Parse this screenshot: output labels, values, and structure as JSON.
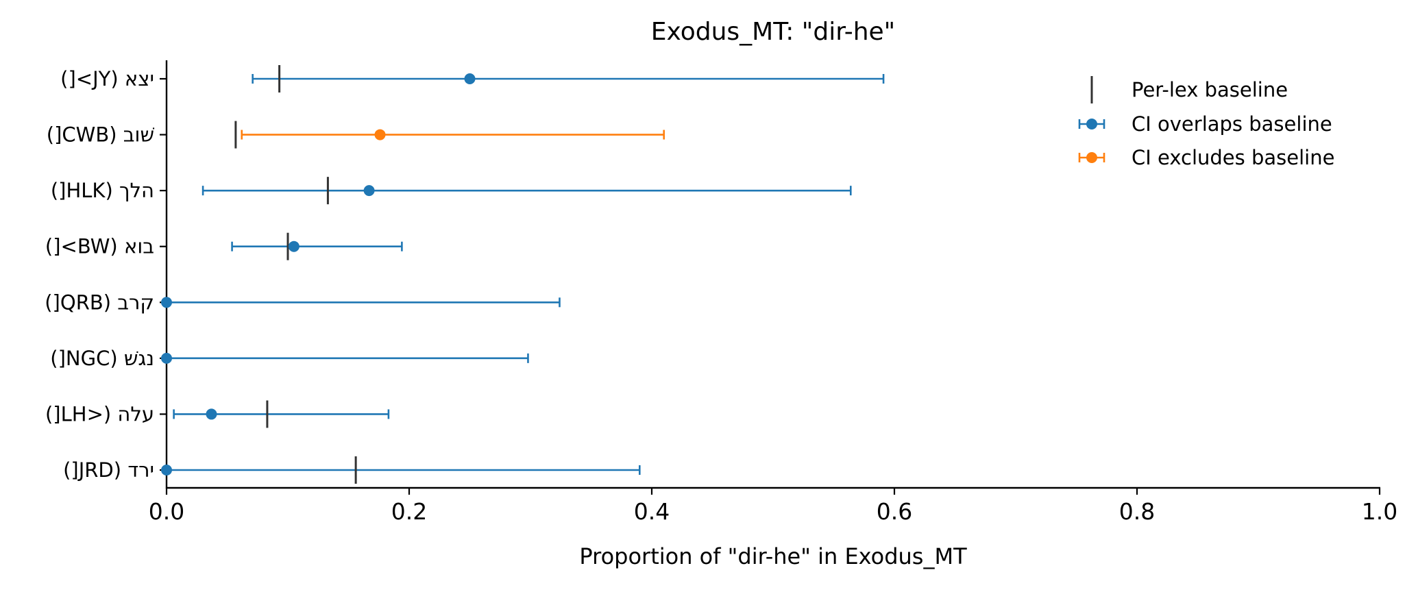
{
  "chart_data": {
    "type": "errorbar",
    "title": "Exodus_MT: \"dir-he\"",
    "xlabel": "Proportion of \"dir-he\" in Exodus_MT",
    "ylabel": "",
    "xlim": [
      0.0,
      1.0
    ],
    "xticks": [
      "0.0",
      "0.2",
      "0.4",
      "0.6",
      "0.8",
      "1.0"
    ],
    "categories": [
      "יצא (JY>[)",
      "שׁוב (CWB[)",
      "הלך (HLK[)",
      "בוא (BW>[)",
      "קרב (QRB[)",
      "נגשׁ (NGC[)",
      "עלה (<LH[)",
      "ירד (JRD[)"
    ],
    "points": [
      {
        "label": "יצא (JY>[)",
        "value": 0.25,
        "ci_low": 0.071,
        "ci_high": 0.591,
        "baseline": 0.093,
        "group": "overlaps"
      },
      {
        "label": "שׁוב (CWB[)",
        "value": 0.176,
        "ci_low": 0.062,
        "ci_high": 0.41,
        "baseline": 0.057,
        "group": "excludes"
      },
      {
        "label": "הלך (HLK[)",
        "value": 0.167,
        "ci_low": 0.03,
        "ci_high": 0.564,
        "baseline": 0.133,
        "group": "overlaps"
      },
      {
        "label": "בוא (BW>[)",
        "value": 0.105,
        "ci_low": 0.054,
        "ci_high": 0.194,
        "baseline": 0.1,
        "group": "overlaps"
      },
      {
        "label": "קרב (QRB[)",
        "value": 0.0,
        "ci_low": 0.0,
        "ci_high": 0.324,
        "baseline": null,
        "group": "overlaps"
      },
      {
        "label": "נגשׁ (NGC[)",
        "value": 0.0,
        "ci_low": 0.0,
        "ci_high": 0.298,
        "baseline": null,
        "group": "overlaps"
      },
      {
        "label": "עלה (<LH[)",
        "value": 0.037,
        "ci_low": 0.006,
        "ci_high": 0.183,
        "baseline": 0.083,
        "group": "overlaps"
      },
      {
        "label": "ירד (JRD[)",
        "value": 0.0,
        "ci_low": 0.0,
        "ci_high": 0.39,
        "baseline": 0.156,
        "group": "overlaps"
      }
    ],
    "legend": {
      "placement": "top-right",
      "entries": [
        {
          "key": "baseline",
          "label": "Per-lex baseline"
        },
        {
          "key": "overlaps",
          "label": "CI overlaps baseline"
        },
        {
          "key": "excludes",
          "label": "CI excludes baseline"
        }
      ]
    },
    "colors": {
      "overlaps": "#1f77b4",
      "excludes": "#ff7f0e",
      "baseline": "#333333",
      "axis": "#000000"
    },
    "grid": false
  }
}
